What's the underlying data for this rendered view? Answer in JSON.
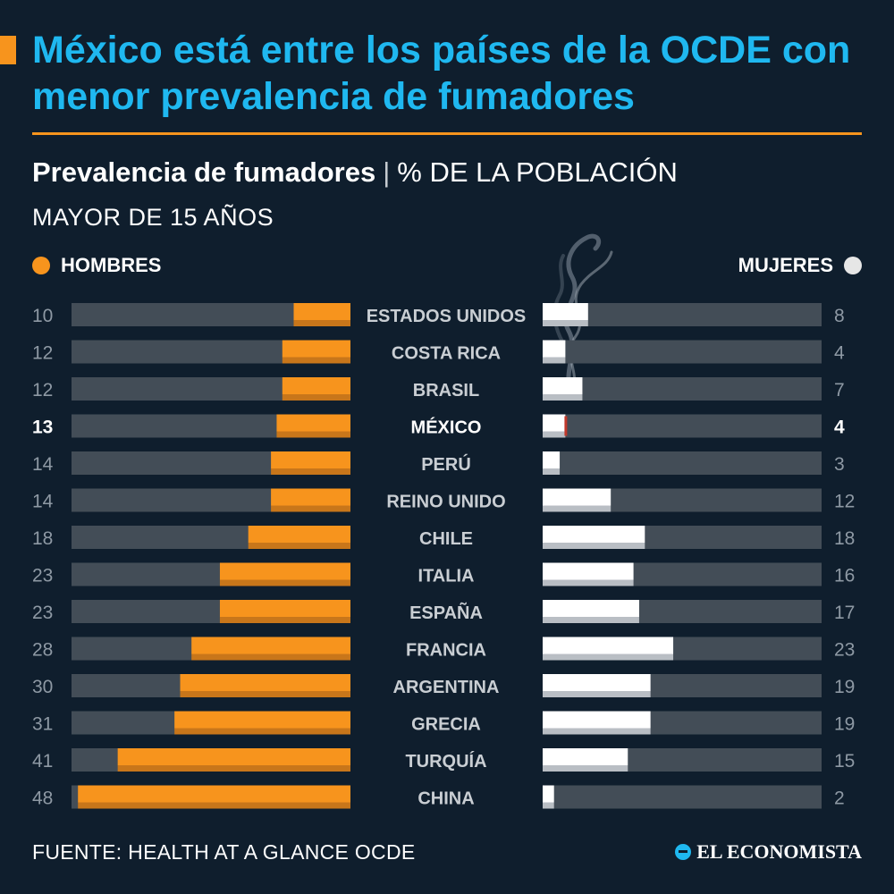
{
  "header": {
    "title": "México está entre los países de la OCDE con menor prevalencia de fumadores",
    "subtitle_strong": "Prevalencia de fumadores",
    "subtitle_sep": "|",
    "subtitle_rest": "% DE LA POBLACIÓN",
    "subtitle_line2": "MAYOR DE 15 AÑOS"
  },
  "legend": {
    "left_label": "HOMBRES",
    "right_label": "MUJERES"
  },
  "colors": {
    "background": "#0f1e2d",
    "title": "#1fb8f0",
    "accent": "#f7941d",
    "track": "#434d57",
    "women_bar": "#ffffff",
    "highlight_tip": "#c0392b"
  },
  "icons": {
    "decoration": "smoke-icon",
    "logo": "el-economista-logo-icon"
  },
  "chart_data": {
    "type": "bar",
    "orientation": "horizontal-butterfly",
    "categories": [
      "ESTADOS UNIDOS",
      "COSTA RICA",
      "BRASIL",
      "MÉXICO",
      "PERÚ",
      "REINO UNIDO",
      "CHILE",
      "ITALIA",
      "ESPAÑA",
      "FRANCIA",
      "ARGENTINA",
      "GRECIA",
      "TURQUÍA",
      "CHINA"
    ],
    "highlight": "MÉXICO",
    "series": [
      {
        "name": "HOMBRES",
        "values": [
          10,
          12,
          12,
          13,
          14,
          14,
          18,
          23,
          23,
          28,
          30,
          31,
          41,
          48
        ]
      },
      {
        "name": "MUJERES",
        "values": [
          8,
          4,
          7,
          4,
          3,
          12,
          18,
          16,
          17,
          23,
          19,
          19,
          15,
          2
        ]
      }
    ],
    "xlim": [
      0,
      50
    ]
  },
  "footer": {
    "source": "FUENTE: HEALTH AT A GLANCE OCDE",
    "logo_text": "EL ECONOMISTA"
  }
}
